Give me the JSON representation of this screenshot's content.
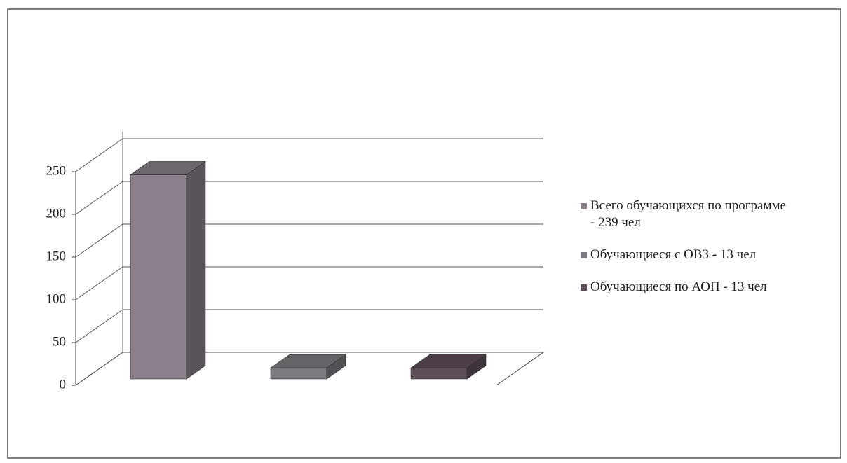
{
  "chart_data": {
    "type": "bar3d",
    "categories": [
      null
    ],
    "series": [
      {
        "name": "Всего обучающихся по программе - 239 чел",
        "color": "#8a7f8b",
        "values": [
          239
        ]
      },
      {
        "name": "Обучающиеся с ОВЗ - 13 чел",
        "color": "#7e7a82",
        "values": [
          13
        ]
      },
      {
        "name": "Обучающиеся по АОП - 13 чел",
        "color": "#5e4e5a",
        "values": [
          13
        ]
      }
    ],
    "ylim": [
      0,
      250
    ],
    "yticks": [
      0,
      50,
      100,
      150,
      200,
      250
    ],
    "grid": true,
    "legend": "right"
  }
}
